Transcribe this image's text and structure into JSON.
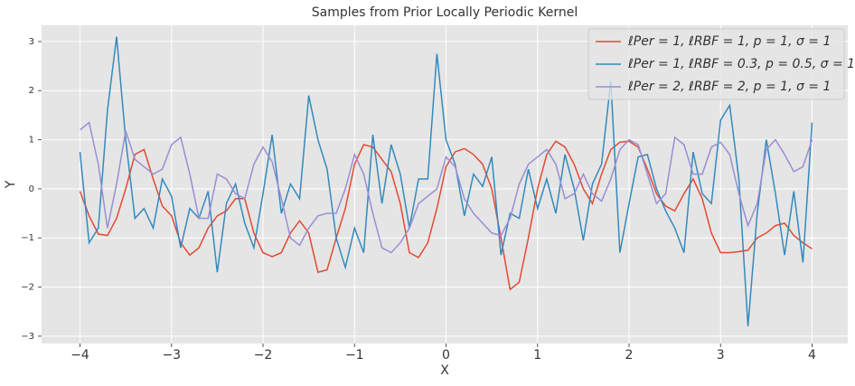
{
  "chart_data": {
    "type": "line",
    "title": "Samples from Prior Locally Periodic Kernel",
    "x_label": "X",
    "y_label": "Y",
    "x": [
      -4.0,
      -3.9,
      -3.8,
      -3.7,
      -3.6,
      -3.5,
      -3.4,
      -3.3,
      -3.2,
      -3.1,
      -3.0,
      -2.9,
      -2.8,
      -2.7,
      -2.6,
      -2.5,
      -2.4,
      -2.3,
      -2.2,
      -2.1,
      -2.0,
      -1.9,
      -1.8,
      -1.7,
      -1.6,
      -1.5,
      -1.4,
      -1.3,
      -1.2,
      -1.1,
      -1.0,
      -0.9,
      -0.8,
      -0.7,
      -0.6,
      -0.5,
      -0.4,
      -0.3,
      -0.2,
      -0.1,
      0.0,
      0.1,
      0.2,
      0.3,
      0.4,
      0.5,
      0.6,
      0.7,
      0.8,
      0.9,
      1.0,
      1.1,
      1.2,
      1.3,
      1.4,
      1.5,
      1.6,
      1.7,
      1.8,
      1.9,
      2.0,
      2.1,
      2.2,
      2.3,
      2.4,
      2.5,
      2.6,
      2.7,
      2.8,
      2.9,
      3.0,
      3.1,
      3.2,
      3.3,
      3.4,
      3.5,
      3.6,
      3.7,
      3.8,
      3.9,
      4.0
    ],
    "series": [
      {
        "name": "ℓPer = 1, ℓRBF = 1, p = 1, σ = 1",
        "color": "#E24A33",
        "values": [
          -0.05,
          -0.55,
          -0.92,
          -0.95,
          -0.6,
          0.0,
          0.7,
          0.8,
          0.2,
          -0.35,
          -0.55,
          -1.1,
          -1.35,
          -1.2,
          -0.8,
          -0.55,
          -0.45,
          -0.2,
          -0.2,
          -0.9,
          -1.3,
          -1.38,
          -1.3,
          -0.9,
          -0.65,
          -0.9,
          -1.7,
          -1.65,
          -1.0,
          -0.4,
          0.5,
          0.9,
          0.85,
          0.6,
          0.35,
          -0.3,
          -1.3,
          -1.4,
          -1.1,
          -0.4,
          0.45,
          0.75,
          0.82,
          0.7,
          0.5,
          0.0,
          -1.0,
          -2.05,
          -1.9,
          -1.0,
          0.0,
          0.7,
          0.97,
          0.85,
          0.5,
          0.0,
          -0.3,
          0.3,
          0.8,
          0.95,
          0.97,
          0.85,
          0.4,
          -0.1,
          -0.35,
          -0.45,
          -0.1,
          0.2,
          -0.2,
          -0.9,
          -1.3,
          -1.3,
          -1.28,
          -1.25,
          -1.0,
          -0.9,
          -0.75,
          -0.7,
          -0.95,
          -1.1,
          -1.22
        ]
      },
      {
        "name": "ℓPer = 1, ℓRBF = 0.3,  p = 0.5, σ = 1",
        "color": "#348ABD",
        "values": [
          0.75,
          -1.1,
          -0.8,
          1.6,
          3.1,
          1.0,
          -0.6,
          -0.4,
          -0.8,
          0.2,
          -0.15,
          -1.2,
          -0.4,
          -0.6,
          -0.05,
          -1.7,
          -0.3,
          0.1,
          -0.7,
          -1.2,
          -0.1,
          1.1,
          -0.5,
          0.1,
          -0.2,
          1.9,
          1.0,
          0.4,
          -1.0,
          -1.6,
          -0.8,
          -1.3,
          1.1,
          -0.3,
          0.9,
          0.3,
          -0.8,
          0.2,
          0.2,
          2.75,
          1.0,
          0.5,
          -0.55,
          0.3,
          0.05,
          0.65,
          -1.35,
          -0.5,
          -0.6,
          0.4,
          -0.4,
          0.2,
          -0.5,
          0.7,
          0.0,
          -1.05,
          0.1,
          0.5,
          2.2,
          -1.3,
          -0.3,
          0.65,
          0.7,
          0.0,
          -0.45,
          -0.8,
          -1.3,
          0.75,
          -0.1,
          -0.3,
          1.4,
          1.7,
          0.2,
          -2.8,
          -0.5,
          1.0,
          -0.1,
          -1.35,
          -0.05,
          -1.5,
          1.35
        ]
      },
      {
        "name": "ℓPer = 2, ℓRBF = 2, p = 1, σ = 1",
        "color": "#988ED5",
        "values": [
          1.2,
          1.35,
          0.5,
          -0.8,
          0.1,
          1.18,
          0.6,
          0.45,
          0.3,
          0.4,
          0.9,
          1.05,
          0.3,
          -0.6,
          -0.6,
          0.3,
          0.2,
          -0.1,
          -0.2,
          0.5,
          0.85,
          0.55,
          -0.2,
          -1.0,
          -1.15,
          -0.8,
          -0.55,
          -0.5,
          -0.5,
          0.0,
          0.7,
          0.3,
          -0.5,
          -1.2,
          -1.3,
          -1.1,
          -0.8,
          -0.3,
          -0.15,
          0.0,
          0.65,
          0.45,
          -0.2,
          -0.5,
          -0.7,
          -0.9,
          -0.95,
          -0.6,
          0.1,
          0.5,
          0.65,
          0.8,
          0.5,
          -0.2,
          -0.1,
          0.3,
          -0.1,
          -0.25,
          0.2,
          0.8,
          1.0,
          0.9,
          0.3,
          -0.3,
          -0.1,
          1.05,
          0.9,
          0.3,
          0.3,
          0.85,
          0.95,
          0.7,
          -0.1,
          -0.75,
          -0.3,
          0.8,
          1.0,
          0.7,
          0.35,
          0.45,
          1.0
        ]
      }
    ],
    "xlim": [
      -4.42,
      4.39
    ],
    "ylim": [
      -3.15,
      3.33
    ],
    "xticks": [
      {
        "value": -4,
        "label": "−4"
      },
      {
        "value": -3,
        "label": "−3"
      },
      {
        "value": -2,
        "label": "−2"
      },
      {
        "value": -1,
        "label": "−1"
      },
      0,
      1,
      2,
      3,
      4
    ],
    "yticks": [
      {
        "value": -3,
        "label": "−3"
      },
      {
        "value": -2,
        "label": "−2"
      },
      {
        "value": -1,
        "label": "−1"
      },
      0,
      1,
      2,
      3
    ],
    "grid": true,
    "legend": "upper right"
  }
}
